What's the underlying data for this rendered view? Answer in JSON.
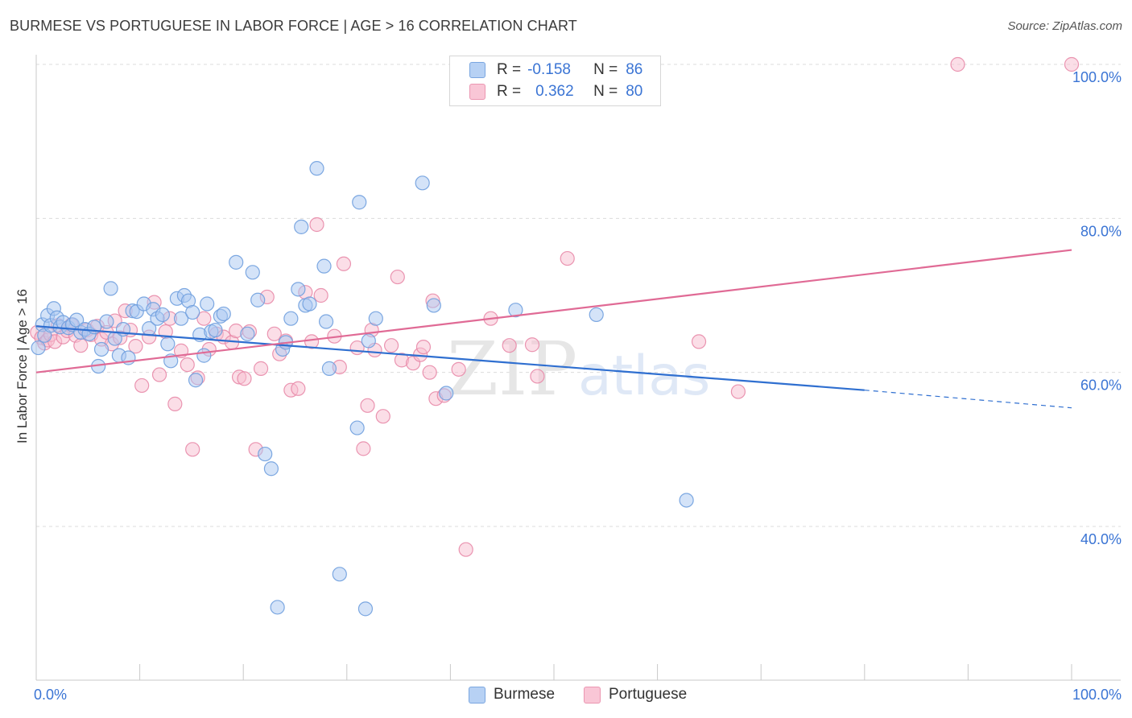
{
  "title": "BURMESE VS PORTUGUESE IN LABOR FORCE | AGE > 16 CORRELATION CHART",
  "source": "Source: ZipAtlas.com",
  "watermark": {
    "zip": "ZIP",
    "atlas": "atlas"
  },
  "legend": {
    "r_label": "R =",
    "n_label": "N =",
    "burmese": {
      "r": "-0.158",
      "n": "86"
    },
    "portuguese": {
      "r": "0.362",
      "n": "80"
    }
  },
  "colors": {
    "burmese_fill": "#a9c8f2",
    "burmese_stroke": "#6f9fde",
    "burmese_line": "#2f6fd0",
    "portuguese_fill": "#f7bdd0",
    "portuguese_stroke": "#e88aa8",
    "portuguese_line": "#e06a95",
    "tick_label": "#3a74d4",
    "grid": "#dcdcdc"
  },
  "chart_data": {
    "type": "scatter",
    "title": "BURMESE VS PORTUGUESE IN LABOR FORCE | AGE > 16 CORRELATION CHART",
    "xlabel": "",
    "ylabel": "In Labor Force | Age > 16",
    "xlim": [
      0,
      100
    ],
    "ylim": [
      20,
      101
    ],
    "x_tick_labels": [
      {
        "value": 0,
        "label": "0.0%"
      },
      {
        "value": 100,
        "label": "100.0%"
      }
    ],
    "y_tick_labels": [
      {
        "value": 40,
        "label": "40.0%"
      },
      {
        "value": 60,
        "label": "60.0%"
      },
      {
        "value": 80,
        "label": "80.0%"
      },
      {
        "value": 100,
        "label": "100.0%"
      }
    ],
    "grid": true,
    "legend_position": "top-center",
    "series": [
      {
        "name": "Burmese",
        "trend": {
          "x": [
            0,
            80
          ],
          "y": [
            66.0,
            57.7
          ],
          "dashed_to": [
            100,
            55.4
          ]
        },
        "points": [
          [
            0.2,
            63.2
          ],
          [
            0.6,
            66.2
          ],
          [
            0.8,
            64.8
          ],
          [
            1.1,
            67.4
          ],
          [
            1.4,
            66.1
          ],
          [
            1.7,
            68.3
          ],
          [
            2.0,
            67.1
          ],
          [
            2.3,
            65.9
          ],
          [
            2.6,
            66.5
          ],
          [
            3.1,
            65.8
          ],
          [
            3.5,
            66.2
          ],
          [
            3.9,
            66.8
          ],
          [
            4.3,
            65.2
          ],
          [
            4.7,
            65.6
          ],
          [
            5.1,
            65.0
          ],
          [
            5.6,
            65.9
          ],
          [
            6.0,
            60.8
          ],
          [
            6.3,
            63.0
          ],
          [
            6.8,
            66.6
          ],
          [
            7.2,
            70.9
          ],
          [
            7.6,
            64.4
          ],
          [
            8.0,
            62.2
          ],
          [
            8.4,
            65.6
          ],
          [
            8.9,
            61.9
          ],
          [
            9.3,
            68.0
          ],
          [
            9.7,
            67.9
          ],
          [
            10.4,
            68.9
          ],
          [
            10.9,
            65.7
          ],
          [
            11.3,
            68.2
          ],
          [
            11.7,
            67.0
          ],
          [
            12.2,
            67.5
          ],
          [
            12.7,
            63.7
          ],
          [
            13.0,
            61.5
          ],
          [
            13.6,
            69.6
          ],
          [
            14.0,
            67.0
          ],
          [
            14.3,
            70.0
          ],
          [
            14.7,
            69.3
          ],
          [
            15.1,
            67.8
          ],
          [
            15.4,
            59.0
          ],
          [
            15.8,
            64.9
          ],
          [
            16.2,
            62.2
          ],
          [
            16.5,
            68.9
          ],
          [
            16.9,
            65.3
          ],
          [
            17.3,
            65.5
          ],
          [
            17.8,
            67.3
          ],
          [
            18.1,
            67.6
          ],
          [
            19.3,
            74.3
          ],
          [
            20.4,
            65.0
          ],
          [
            20.9,
            73.0
          ],
          [
            21.4,
            69.4
          ],
          [
            22.1,
            49.4
          ],
          [
            22.7,
            47.5
          ],
          [
            23.3,
            29.5
          ],
          [
            23.8,
            63.0
          ],
          [
            24.1,
            63.9
          ],
          [
            24.6,
            67.0
          ],
          [
            25.3,
            70.8
          ],
          [
            25.6,
            78.9
          ],
          [
            26.0,
            68.7
          ],
          [
            26.4,
            68.9
          ],
          [
            27.1,
            86.5
          ],
          [
            27.8,
            73.8
          ],
          [
            28.0,
            66.6
          ],
          [
            28.3,
            60.5
          ],
          [
            29.3,
            33.8
          ],
          [
            31.0,
            52.8
          ],
          [
            31.2,
            82.1
          ],
          [
            31.8,
            29.3
          ],
          [
            32.1,
            64.1
          ],
          [
            32.8,
            67.0
          ],
          [
            37.3,
            84.6
          ],
          [
            38.4,
            68.7
          ],
          [
            39.6,
            57.3
          ],
          [
            46.3,
            68.1
          ],
          [
            54.1,
            67.5
          ],
          [
            62.8,
            43.4
          ]
        ]
      },
      {
        "name": "Portuguese",
        "trend": {
          "x": [
            0,
            100
          ],
          "y": [
            60.0,
            75.9
          ]
        },
        "points": [
          [
            0.1,
            65.2
          ],
          [
            0.5,
            64.5
          ],
          [
            0.8,
            63.8
          ],
          [
            1.1,
            64.2
          ],
          [
            1.4,
            64.9
          ],
          [
            1.8,
            64.0
          ],
          [
            2.1,
            66.1
          ],
          [
            2.6,
            64.6
          ],
          [
            3.0,
            65.4
          ],
          [
            3.4,
            66.2
          ],
          [
            3.8,
            64.8
          ],
          [
            4.3,
            63.5
          ],
          [
            4.9,
            65.5
          ],
          [
            5.3,
            64.9
          ],
          [
            5.9,
            66.0
          ],
          [
            6.3,
            64.3
          ],
          [
            6.8,
            65.2
          ],
          [
            7.3,
            63.7
          ],
          [
            7.6,
            66.7
          ],
          [
            8.1,
            64.5
          ],
          [
            8.6,
            68.0
          ],
          [
            9.1,
            65.5
          ],
          [
            9.6,
            63.4
          ],
          [
            10.2,
            58.3
          ],
          [
            10.9,
            64.6
          ],
          [
            11.4,
            69.1
          ],
          [
            11.9,
            59.7
          ],
          [
            12.5,
            65.3
          ],
          [
            12.9,
            67.0
          ],
          [
            13.4,
            55.9
          ],
          [
            14.0,
            62.8
          ],
          [
            14.6,
            61.0
          ],
          [
            15.1,
            50.0
          ],
          [
            15.6,
            59.3
          ],
          [
            16.2,
            67.0
          ],
          [
            16.7,
            63.0
          ],
          [
            17.4,
            65.0
          ],
          [
            18.1,
            64.6
          ],
          [
            18.9,
            63.9
          ],
          [
            19.3,
            65.4
          ],
          [
            19.6,
            59.4
          ],
          [
            20.1,
            59.2
          ],
          [
            20.6,
            65.3
          ],
          [
            21.2,
            50.0
          ],
          [
            21.7,
            60.5
          ],
          [
            22.3,
            69.8
          ],
          [
            23.0,
            65.0
          ],
          [
            23.5,
            62.4
          ],
          [
            24.1,
            64.1
          ],
          [
            24.6,
            57.7
          ],
          [
            25.3,
            57.9
          ],
          [
            26.0,
            70.4
          ],
          [
            26.6,
            64.0
          ],
          [
            27.1,
            79.2
          ],
          [
            27.5,
            70.0
          ],
          [
            28.8,
            64.7
          ],
          [
            29.3,
            60.7
          ],
          [
            29.7,
            74.1
          ],
          [
            31.0,
            63.2
          ],
          [
            31.6,
            50.1
          ],
          [
            32.0,
            55.7
          ],
          [
            32.4,
            65.5
          ],
          [
            32.7,
            62.9
          ],
          [
            33.5,
            54.3
          ],
          [
            34.3,
            63.5
          ],
          [
            34.9,
            72.4
          ],
          [
            35.3,
            61.6
          ],
          [
            36.4,
            61.2
          ],
          [
            37.1,
            62.3
          ],
          [
            37.4,
            63.3
          ],
          [
            38.0,
            60.0
          ],
          [
            38.3,
            69.3
          ],
          [
            38.6,
            56.6
          ],
          [
            39.4,
            57.0
          ],
          [
            40.8,
            60.4
          ],
          [
            41.5,
            37.0
          ],
          [
            43.9,
            67.0
          ],
          [
            45.7,
            63.5
          ],
          [
            47.9,
            63.6
          ],
          [
            48.4,
            59.5
          ],
          [
            51.3,
            74.8
          ],
          [
            64.0,
            64.0
          ],
          [
            67.8,
            57.5
          ],
          [
            89.0,
            100.0
          ],
          [
            100.0,
            100.0
          ]
        ]
      }
    ]
  }
}
